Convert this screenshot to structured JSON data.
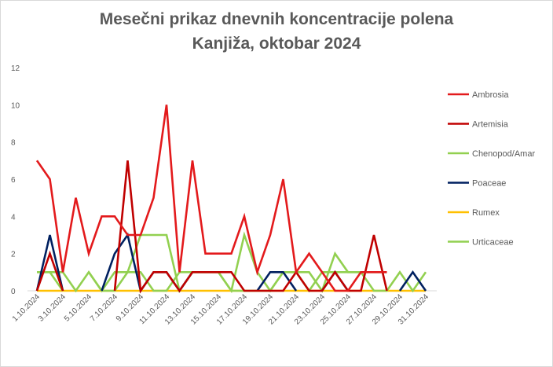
{
  "chart_data": {
    "type": "line",
    "title": "Mesečni prikaz dnevnih koncentracije polena",
    "subtitle": "Kanjiža, oktobar 2024",
    "xlabel": "",
    "ylabel": "",
    "ylim": [
      0,
      12
    ],
    "yticks": [
      0,
      2,
      4,
      6,
      8,
      10,
      12
    ],
    "grid": false,
    "legend_position": "right",
    "x": [
      "1.10.2024",
      "2.10.2024",
      "3.10.2024",
      "4.10.2024",
      "5.10.2024",
      "6.10.2024",
      "7.10.2024",
      "8.10.2024",
      "9.10.2024",
      "10.10.2024",
      "11.10.2024",
      "12.10.2024",
      "13.10.2024",
      "14.10.2024",
      "15.10.2024",
      "16.10.2024",
      "17.10.2024",
      "18.10.2024",
      "19.10.2024",
      "20.10.2024",
      "21.10.2024",
      "22.10.2024",
      "23.10.2024",
      "24.10.2024",
      "25.10.2024",
      "26.10.2024",
      "27.10.2024",
      "28.10.2024",
      "29.10.2024",
      "30.10.2024",
      "31.10.2024"
    ],
    "xtick_labels": [
      "1.10.2024",
      "3.10.2024",
      "5.10.2024",
      "7.10.2024",
      "9.10.2024",
      "11.10.2024",
      "13.10.2024",
      "15.10.2024",
      "17.10.2024",
      "19.10.2024",
      "21.10.2024",
      "23.10.2024",
      "25.10.2024",
      "27.10.2024",
      "29.10.2024",
      "31.10.2024"
    ],
    "series": [
      {
        "name": "Ambrosia",
        "color": "#e31a1c",
        "values": [
          7,
          6,
          1,
          5,
          2,
          4,
          4,
          3,
          3,
          5,
          10,
          1,
          7,
          2,
          2,
          2,
          4,
          1,
          3,
          6,
          1,
          2,
          1,
          0,
          0,
          1,
          1,
          1,
          null,
          null,
          null
        ]
      },
      {
        "name": "Artemisia",
        "color": "#c00000",
        "values": [
          0,
          2,
          0,
          null,
          null,
          null,
          0,
          7,
          0,
          1,
          1,
          0,
          1,
          1,
          1,
          1,
          0,
          0,
          0,
          0,
          1,
          0,
          0,
          1,
          0,
          0,
          3,
          0,
          null,
          null,
          null
        ]
      },
      {
        "name": "Chenopod/Amar",
        "color": "#92d050",
        "values": [
          1,
          1,
          1,
          0,
          1,
          0,
          1,
          1,
          3,
          3,
          3,
          0,
          1,
          1,
          1,
          0,
          3,
          1,
          0,
          1,
          1,
          0,
          1,
          1,
          1,
          1,
          1,
          1,
          null,
          null,
          null
        ]
      },
      {
        "name": "Poaceae",
        "color": "#002060",
        "values": [
          0,
          3,
          0,
          null,
          null,
          0,
          2,
          3,
          0,
          1,
          1,
          0,
          1,
          null,
          null,
          null,
          null,
          0,
          1,
          1,
          0,
          null,
          0,
          1,
          0,
          null,
          null,
          null,
          0,
          1,
          0
        ]
      },
      {
        "name": "Rumex",
        "color": "#ffc000",
        "values": [
          0,
          0,
          0,
          0,
          0,
          0,
          0,
          0,
          0,
          0,
          0,
          0,
          0,
          0,
          0,
          0,
          0,
          0,
          0,
          0,
          0,
          0,
          0,
          0,
          0,
          0,
          0,
          0,
          0,
          0,
          0
        ]
      },
      {
        "name": "Urticaceae",
        "color": "#92d050",
        "values": [
          1,
          1,
          0,
          null,
          1,
          0,
          0,
          1,
          1,
          0,
          0,
          1,
          1,
          1,
          1,
          0,
          0,
          0,
          0,
          1,
          1,
          1,
          0,
          2,
          1,
          1,
          0,
          0,
          1,
          0,
          1
        ]
      }
    ]
  }
}
